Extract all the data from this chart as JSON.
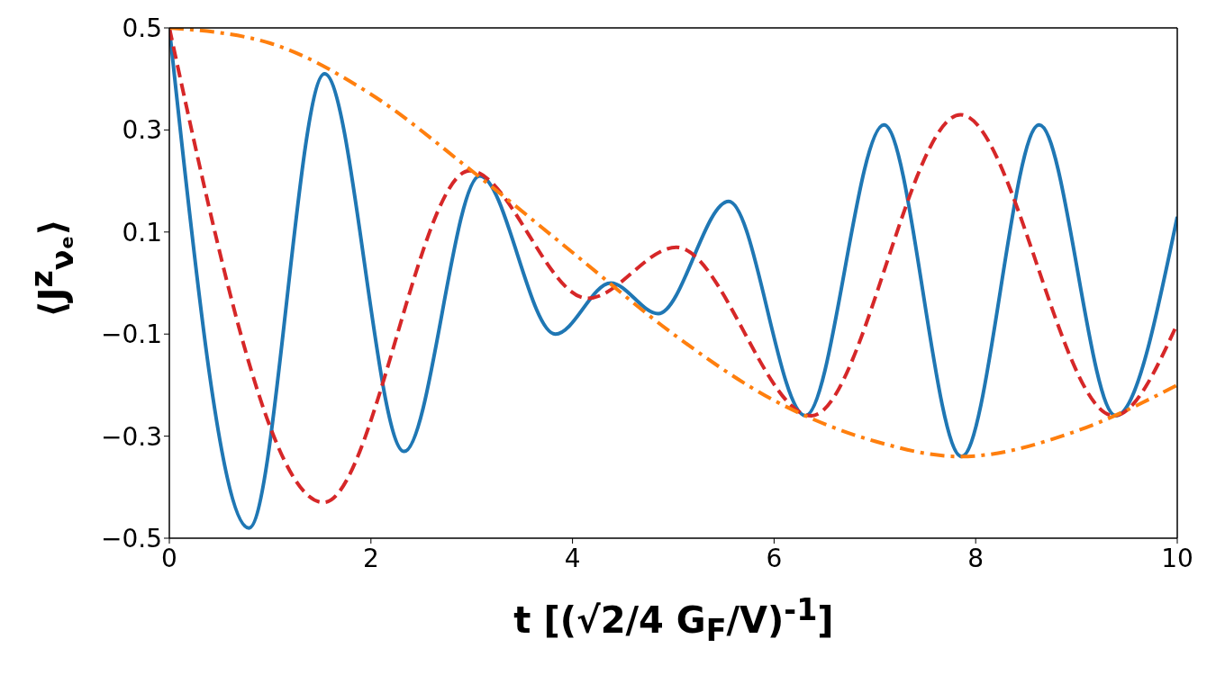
{
  "chart_data": {
    "type": "line",
    "xlabel": "t [(√2/4 G$_{F}$/V)$^{-1}$]",
    "ylabel": "⟨J$^{z}$$_{νₑ}$⟩",
    "xlim": [
      0,
      10
    ],
    "xticks": [
      0,
      2,
      4,
      6,
      8,
      10
    ],
    "ylim": [
      -0.5,
      0.5
    ],
    "yticks": [
      -0.5,
      -0.3,
      -0.1,
      0.1,
      0.3,
      0.5
    ],
    "grid": false,
    "legend": false,
    "marker": "none",
    "series": [
      {
        "color": "#1f77b4",
        "line_style": "solid",
        "x": [
          0,
          0.79,
          1.54,
          2.33,
          3.08,
          3.83,
          4.38,
          4.85,
          5.55,
          6.31,
          7.09,
          7.86,
          8.63,
          9.39,
          10
        ],
        "values": [
          0.5,
          -0.48,
          0.41,
          -0.33,
          0.21,
          -0.1,
          0.0,
          -0.06,
          0.16,
          -0.26,
          0.31,
          -0.34,
          0.31,
          -0.26,
          0.13
        ]
      },
      {
        "color": "#d62728",
        "line_style": "dashed",
        "x": [
          0,
          1.53,
          2.98,
          4.15,
          5.03,
          6.37,
          7.85,
          9.37,
          10
        ],
        "values": [
          0.5,
          -0.43,
          0.22,
          -0.03,
          0.07,
          -0.26,
          0.33,
          -0.26,
          -0.08
        ]
      },
      {
        "color": "#ff7f0e",
        "line_style": "dashdot",
        "x": [
          0,
          1,
          2,
          3,
          4,
          5,
          6,
          7,
          7.85,
          9,
          10
        ],
        "values": [
          0.5,
          0.47,
          0.37,
          0.22,
          0.06,
          -0.1,
          -0.23,
          -0.31,
          -0.34,
          -0.29,
          -0.2
        ]
      }
    ]
  }
}
